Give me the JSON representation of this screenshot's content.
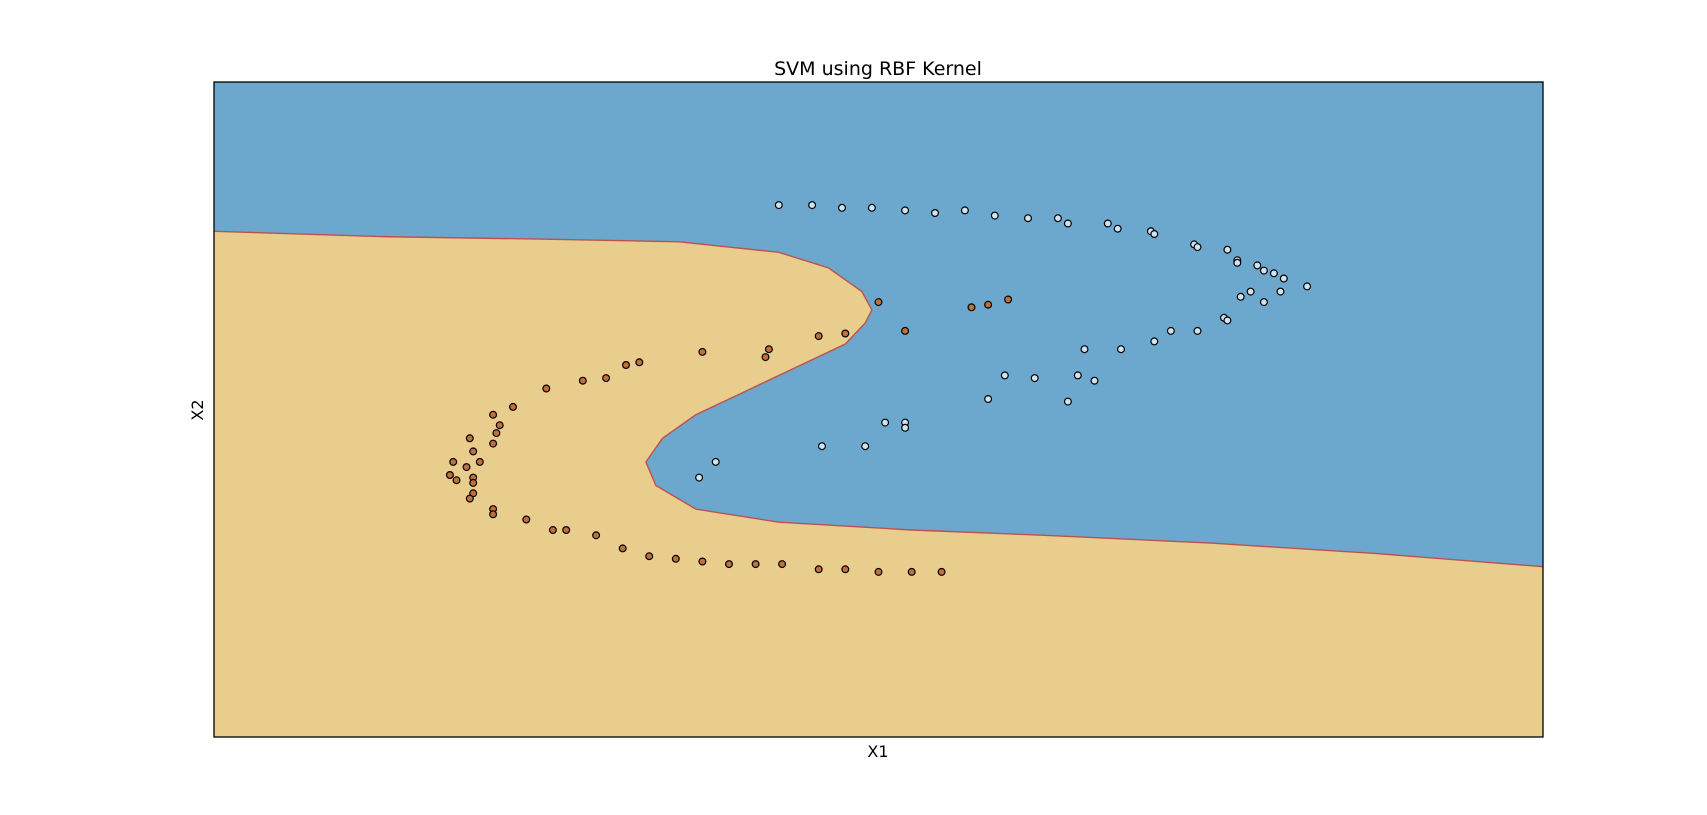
{
  "chart_data": {
    "type": "scatter",
    "title": "SVM using RBF Kernel",
    "xlabel": "X1",
    "ylabel": "X2",
    "xlim": [
      -1.5,
      2.5
    ],
    "ylim": [
      -1.0,
      1.5
    ],
    "grid": false,
    "ticks_visible": false,
    "colors": {
      "region_class_0": "#6ca7cd",
      "region_class_1": "#e8cd8c",
      "boundary_edge": "#c0504d",
      "point_class_0": "#cfe4f1",
      "point_class_1": "#c0703a",
      "point_edge": "#000000"
    },
    "decision_boundary": [
      [
        -1.5,
        0.93
      ],
      [
        -1.0,
        0.91
      ],
      [
        -0.5,
        0.9
      ],
      [
        -0.1,
        0.89
      ],
      [
        0.2,
        0.85
      ],
      [
        0.35,
        0.79
      ],
      [
        0.45,
        0.7
      ],
      [
        0.48,
        0.63
      ],
      [
        0.46,
        0.58
      ],
      [
        0.4,
        0.5
      ],
      [
        0.25,
        0.41
      ],
      [
        0.1,
        0.32
      ],
      [
        -0.05,
        0.23
      ],
      [
        -0.15,
        0.14
      ],
      [
        -0.2,
        0.05
      ],
      [
        -0.17,
        -0.04
      ],
      [
        -0.05,
        -0.13
      ],
      [
        0.2,
        -0.18
      ],
      [
        0.6,
        -0.21
      ],
      [
        1.0,
        -0.23
      ],
      [
        1.5,
        -0.26
      ],
      [
        2.0,
        -0.3
      ],
      [
        2.5,
        -0.35
      ]
    ],
    "series": [
      {
        "class": 0,
        "points": [
          [
            0.2,
            1.03
          ],
          [
            0.3,
            1.03
          ],
          [
            0.39,
            1.02
          ],
          [
            0.48,
            1.02
          ],
          [
            0.58,
            1.01
          ],
          [
            0.67,
            1.0
          ],
          [
            0.76,
            1.01
          ],
          [
            0.85,
            0.99
          ],
          [
            0.95,
            0.98
          ],
          [
            1.04,
            0.98
          ],
          [
            1.07,
            0.96
          ],
          [
            1.19,
            0.96
          ],
          [
            1.22,
            0.94
          ],
          [
            1.32,
            0.93
          ],
          [
            1.33,
            0.92
          ],
          [
            1.45,
            0.88
          ],
          [
            1.46,
            0.87
          ],
          [
            1.55,
            0.86
          ],
          [
            1.58,
            0.82
          ],
          [
            1.58,
            0.81
          ],
          [
            1.64,
            0.8
          ],
          [
            1.66,
            0.78
          ],
          [
            1.69,
            0.77
          ],
          [
            1.72,
            0.75
          ],
          [
            1.79,
            0.72
          ],
          [
            1.62,
            0.7
          ],
          [
            1.71,
            0.7
          ],
          [
            1.59,
            0.68
          ],
          [
            1.66,
            0.66
          ],
          [
            1.54,
            0.6
          ],
          [
            1.55,
            0.59
          ],
          [
            1.38,
            0.55
          ],
          [
            1.46,
            0.55
          ],
          [
            1.33,
            0.51
          ],
          [
            1.12,
            0.48
          ],
          [
            1.23,
            0.48
          ],
          [
            0.88,
            0.38
          ],
          [
            0.97,
            0.37
          ],
          [
            1.1,
            0.38
          ],
          [
            1.15,
            0.36
          ],
          [
            0.83,
            0.29
          ],
          [
            1.07,
            0.28
          ],
          [
            0.52,
            0.2
          ],
          [
            0.58,
            0.2
          ],
          [
            0.58,
            0.18
          ],
          [
            0.33,
            0.11
          ],
          [
            0.46,
            0.11
          ],
          [
            0.01,
            0.05
          ],
          [
            -0.04,
            -0.01
          ]
        ]
      },
      {
        "class": 1,
        "points": [
          [
            0.89,
            0.67
          ],
          [
            0.83,
            0.65
          ],
          [
            0.78,
            0.64
          ],
          [
            0.5,
            0.66
          ],
          [
            0.58,
            0.55
          ],
          [
            0.4,
            0.54
          ],
          [
            0.32,
            0.53
          ],
          [
            0.17,
            0.48
          ],
          [
            0.16,
            0.45
          ],
          [
            -0.03,
            0.47
          ],
          [
            -0.22,
            0.43
          ],
          [
            -0.26,
            0.42
          ],
          [
            -0.32,
            0.37
          ],
          [
            -0.39,
            0.36
          ],
          [
            -0.5,
            0.33
          ],
          [
            -0.6,
            0.26
          ],
          [
            -0.66,
            0.23
          ],
          [
            -0.64,
            0.19
          ],
          [
            -0.65,
            0.16
          ],
          [
            -0.73,
            0.14
          ],
          [
            -0.66,
            0.12
          ],
          [
            -0.72,
            0.09
          ],
          [
            -0.78,
            0.05
          ],
          [
            -0.7,
            0.05
          ],
          [
            -0.74,
            0.03
          ],
          [
            -0.79,
            0.0
          ],
          [
            -0.72,
            -0.01
          ],
          [
            -0.77,
            -0.02
          ],
          [
            -0.72,
            -0.03
          ],
          [
            -0.72,
            -0.07
          ],
          [
            -0.73,
            -0.09
          ],
          [
            -0.66,
            -0.13
          ],
          [
            -0.56,
            -0.17
          ],
          [
            -0.66,
            -0.15
          ],
          [
            -0.48,
            -0.21
          ],
          [
            -0.44,
            -0.21
          ],
          [
            -0.35,
            -0.23
          ],
          [
            -0.27,
            -0.28
          ],
          [
            -0.19,
            -0.31
          ],
          [
            -0.11,
            -0.32
          ],
          [
            -0.03,
            -0.33
          ],
          [
            0.05,
            -0.34
          ],
          [
            0.13,
            -0.34
          ],
          [
            0.21,
            -0.34
          ],
          [
            0.32,
            -0.36
          ],
          [
            0.4,
            -0.36
          ],
          [
            0.5,
            -0.37
          ],
          [
            0.6,
            -0.37
          ],
          [
            0.69,
            -0.37
          ]
        ]
      }
    ]
  }
}
